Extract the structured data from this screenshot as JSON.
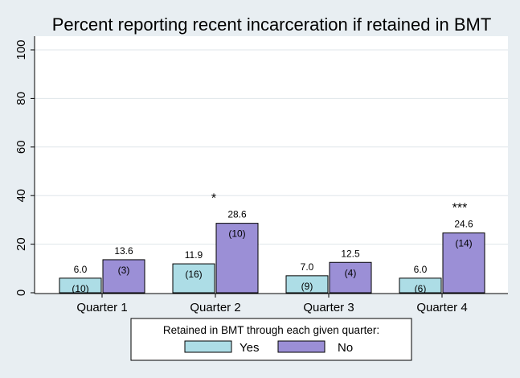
{
  "chart_data": {
    "type": "bar",
    "title": "Percent reporting recent incarceration if retained in BMT",
    "categories": [
      "Quarter 1",
      "Quarter 2",
      "Quarter 3",
      "Quarter 4"
    ],
    "series": [
      {
        "name": "Yes",
        "color": "#addde6",
        "values": [
          6.0,
          11.9,
          7.0,
          6.0
        ],
        "value_labels": [
          "6.0",
          "11.9",
          "7.0",
          "6.0"
        ],
        "counts": [
          "(10)",
          "(16)",
          "(9)",
          "(6)"
        ]
      },
      {
        "name": "No",
        "color": "#9b8fd6",
        "values": [
          13.6,
          28.6,
          12.5,
          24.6
        ],
        "value_labels": [
          "13.6",
          "28.6",
          "12.5",
          "24.6"
        ],
        "counts": [
          "(3)",
          "(10)",
          "(4)",
          "(14)"
        ]
      }
    ],
    "significance": [
      "",
      "*",
      "",
      "***"
    ],
    "y_ticks": [
      "0",
      "20",
      "40",
      "60",
      "80",
      "100"
    ],
    "ylim": [
      0,
      100
    ],
    "grid": true,
    "legend": {
      "title": "Retained in BMT through each given quarter:",
      "placement": "bottom-center"
    }
  }
}
